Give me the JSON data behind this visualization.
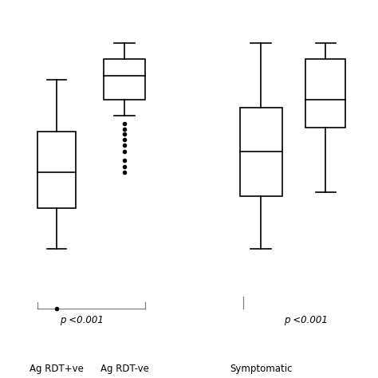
{
  "panel1": {
    "box1": {
      "label": "Ag RDT+ve",
      "whislo": 13.0,
      "q1": 18.0,
      "med": 22.5,
      "q3": 27.5,
      "whishi": 34.0,
      "fliers_high": [
        5.5
      ],
      "fliers_low": []
    },
    "box2": {
      "label": "Ag RDT-ve",
      "whislo": 29.5,
      "q1": 31.5,
      "med": 34.5,
      "q3": 36.5,
      "whishi": 38.5,
      "fliers_high": [],
      "fliers_low": [
        28.5,
        27.8,
        27.2,
        26.5,
        25.8,
        25.0,
        24.0,
        23.2,
        22.5
      ]
    },
    "pvalue": "p <0.001"
  },
  "panel2": {
    "box1": {
      "label": "Symptomatic",
      "whislo": 13.0,
      "q1": 19.5,
      "med": 25.0,
      "q3": 30.5,
      "whishi": 38.5,
      "fliers_high": [],
      "fliers_low": []
    },
    "box2": {
      "label": "",
      "whislo": 20.0,
      "q1": 28.0,
      "med": 31.5,
      "q3": 36.5,
      "whishi": 38.5,
      "fliers_high": [],
      "fliers_low": []
    },
    "pvalue": "p <0.001"
  },
  "ylim": [
    3,
    42
  ],
  "background_color": "#ffffff",
  "linewidth": 1.2
}
